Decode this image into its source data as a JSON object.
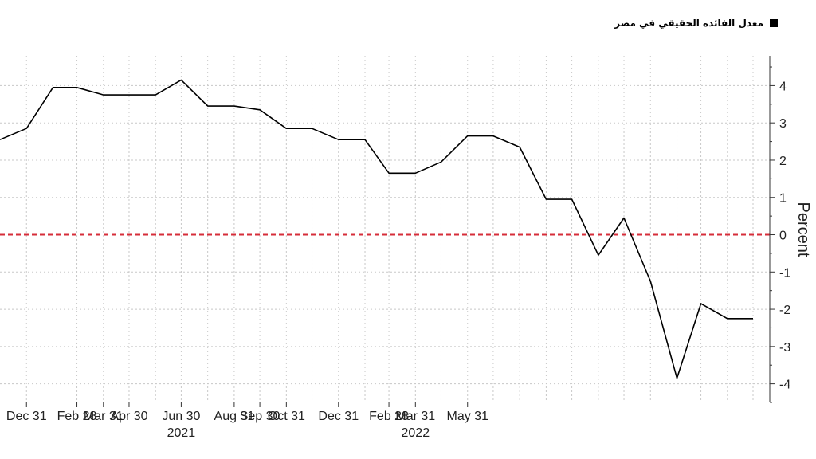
{
  "legend": {
    "label": "معدل الفائدة الحقيقي في مصر",
    "swatch_color": "#000000"
  },
  "chart_data": {
    "type": "line",
    "title": "",
    "xlabel": "",
    "ylabel": "Percent",
    "ylim": [
      -4.5,
      4.8
    ],
    "y_ticks": [
      -4,
      -3,
      -2,
      -1,
      0,
      1,
      2,
      3,
      4
    ],
    "y_axis_position": "right",
    "grid": true,
    "x_tick_labels": [
      {
        "date": "2020-12-31",
        "label": "Dec 31",
        "sub": ""
      },
      {
        "date": "2021-02-28",
        "label": "Feb 28",
        "sub": ""
      },
      {
        "date": "2021-03-31",
        "label": "Mar 31",
        "sub": ""
      },
      {
        "date": "2021-04-30",
        "label": "Apr 30",
        "sub": ""
      },
      {
        "date": "2021-06-30",
        "label": "Jun 30",
        "sub": "2021"
      },
      {
        "date": "2021-08-31",
        "label": "Aug 31",
        "sub": ""
      },
      {
        "date": "2021-09-30",
        "label": "Sep 30",
        "sub": ""
      },
      {
        "date": "2021-10-31",
        "label": "Oct 31",
        "sub": ""
      },
      {
        "date": "2021-12-31",
        "label": "Dec 31",
        "sub": ""
      },
      {
        "date": "2022-02-28",
        "label": "Feb 28",
        "sub": ""
      },
      {
        "date": "2022-03-31",
        "label": "Mar 31",
        "sub": "2022"
      },
      {
        "date": "2022-05-31",
        "label": "May 31",
        "sub": ""
      }
    ],
    "reference_line": {
      "y": 0,
      "color": "#d62d3a",
      "style": "dashed"
    },
    "series": [
      {
        "color": "#000000",
        "points": [
          {
            "x": "2020-11-30",
            "y": 2.55
          },
          {
            "x": "2020-12-31",
            "y": 2.85
          },
          {
            "x": "2021-01-31",
            "y": 3.95
          },
          {
            "x": "2021-02-28",
            "y": 3.95
          },
          {
            "x": "2021-03-31",
            "y": 3.75
          },
          {
            "x": "2021-04-30",
            "y": 3.75
          },
          {
            "x": "2021-05-31",
            "y": 3.75
          },
          {
            "x": "2021-06-30",
            "y": 4.15
          },
          {
            "x": "2021-07-31",
            "y": 3.45
          },
          {
            "x": "2021-08-31",
            "y": 3.45
          },
          {
            "x": "2021-09-30",
            "y": 3.35
          },
          {
            "x": "2021-10-31",
            "y": 2.85
          },
          {
            "x": "2021-11-30",
            "y": 2.85
          },
          {
            "x": "2021-12-31",
            "y": 2.55
          },
          {
            "x": "2022-01-31",
            "y": 2.55
          },
          {
            "x": "2022-02-28",
            "y": 1.65
          },
          {
            "x": "2022-03-31",
            "y": 1.65
          },
          {
            "x": "2022-04-30",
            "y": 1.95
          },
          {
            "x": "2022-05-31",
            "y": 2.65
          },
          {
            "x": "2022-06-30",
            "y": 2.65
          },
          {
            "x": "2022-07-31",
            "y": 2.35
          },
          {
            "x": "2022-08-31",
            "y": 0.95
          },
          {
            "x": "2022-09-30",
            "y": 0.95
          },
          {
            "x": "2022-10-31",
            "y": -0.55
          },
          {
            "x": "2022-11-30",
            "y": 0.45
          },
          {
            "x": "2022-12-31",
            "y": -1.25
          },
          {
            "x": "2023-01-31",
            "y": -3.85
          },
          {
            "x": "2023-02-28",
            "y": -1.85
          },
          {
            "x": "2023-03-31",
            "y": -2.25
          },
          {
            "x": "2023-04-30",
            "y": -2.25
          }
        ]
      }
    ]
  }
}
